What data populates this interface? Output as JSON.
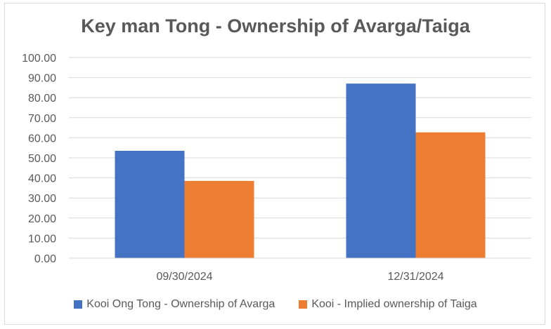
{
  "chart_data": {
    "type": "bar",
    "title": "Key man Tong - Ownership of Avarga/Taiga",
    "xlabel": "",
    "ylabel": "",
    "categories": [
      "09/30/2024",
      "12/31/2024"
    ],
    "series": [
      {
        "name": "Kooi Ong Tong - Ownership of Avarga",
        "color": "#4472c4",
        "values": [
          53.5,
          87.0
        ]
      },
      {
        "name": "Kooi - Implied ownership of Taiga",
        "color": "#ed7d31",
        "values": [
          38.5,
          62.7
        ]
      }
    ],
    "ylim": [
      0,
      100
    ],
    "yticks": [
      "0.00",
      "10.00",
      "20.00",
      "30.00",
      "40.00",
      "50.00",
      "60.00",
      "70.00",
      "80.00",
      "90.00",
      "100.00"
    ],
    "grid": true,
    "legend": "bottom"
  }
}
